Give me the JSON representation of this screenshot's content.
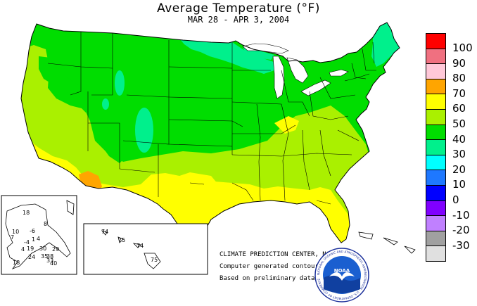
{
  "title": "Average Temperature (°F)",
  "date_range": "MAR 28 - APR  3, 2004",
  "credits": {
    "center": "CLIMATE PREDICTION CENTER, NOAA",
    "line2": "Computer generated contours",
    "line3": "Based on preliminary data"
  },
  "noaa_logo": {
    "name": "noaa-logo",
    "text": "NOAA",
    "ring_text": "NATIONAL OCEANIC AND ATMOSPHERIC ADMINISTRATION · U.S. DEPARTMENT OF COMMERCE"
  },
  "legend": [
    {
      "label": "100",
      "color": "#ff0000"
    },
    {
      "label": "90",
      "color": "#f07080"
    },
    {
      "label": "80",
      "color": "#ffc8d8"
    },
    {
      "label": "70",
      "color": "#ffa500"
    },
    {
      "label": "60",
      "color": "#ffff00"
    },
    {
      "label": "50",
      "color": "#aaf000"
    },
    {
      "label": "40",
      "color": "#00dd00"
    },
    {
      "label": "30",
      "color": "#00f08c"
    },
    {
      "label": "20",
      "color": "#00ffff"
    },
    {
      "label": "10",
      "color": "#1e78ff"
    },
    {
      "label": "0",
      "color": "#0000ff"
    },
    {
      "label": "-10",
      "color": "#8000ff"
    },
    {
      "label": "-20",
      "color": "#c080ff"
    },
    {
      "label": "-30",
      "color": "#a0a0a0"
    },
    {
      "label": "",
      "color": "#e0e0e0"
    }
  ],
  "alaska_labels": [
    "18",
    "10",
    "-6",
    "8",
    "7",
    "4",
    "-4",
    "1",
    "4",
    "19",
    "30",
    "29",
    "24",
    "35",
    "38",
    "40",
    "18",
    "33"
  ],
  "hawaii_labels": [
    "74",
    "75",
    "74",
    "75"
  ],
  "colors": {
    "green": "#00dd00",
    "lime": "#aaf000",
    "yellow": "#ffff00",
    "orange": "#ffa500",
    "teal": "#00f08c",
    "lake": "#ffffff",
    "border": "#000000"
  }
}
